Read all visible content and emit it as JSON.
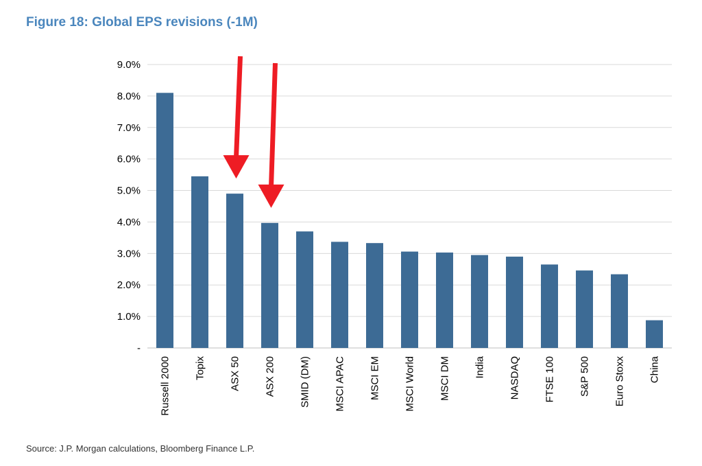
{
  "title": "Figure 18: Global EPS revisions (-1M)",
  "source": "Source: J.P. Morgan calculations, Bloomberg Finance L.P.",
  "colors": {
    "bar": "#3d6b95",
    "grid": "#d9d9d9",
    "title": "#4a86bd",
    "arrow": "#ee1c24"
  },
  "chart_data": {
    "type": "bar",
    "title": "Figure 18: Global EPS revisions (-1M)",
    "xlabel": "",
    "ylabel": "",
    "ylim": [
      0,
      9
    ],
    "yticks": [
      0,
      1,
      2,
      3,
      4,
      5,
      6,
      7,
      8,
      9
    ],
    "ytick_labels": [
      "-",
      "1.0%",
      "2.0%",
      "3.0%",
      "4.0%",
      "5.0%",
      "6.0%",
      "7.0%",
      "8.0%",
      "9.0%"
    ],
    "grid": true,
    "categories": [
      "Russell 2000",
      "Topix",
      "ASX 50",
      "ASX 200",
      "SMID (DM)",
      "MSCI APAC",
      "MSCI EM",
      "MSCI World",
      "MSCI DM",
      "India",
      "NASDAQ",
      "FTSE 100",
      "S&P 500",
      "Euro Stoxx",
      "China"
    ],
    "values": [
      8.1,
      5.45,
      4.9,
      3.97,
      3.7,
      3.37,
      3.33,
      3.06,
      3.03,
      2.95,
      2.9,
      2.65,
      2.46,
      2.34,
      0.88
    ],
    "annotations": [
      {
        "type": "arrow",
        "target": "ASX 50"
      },
      {
        "type": "arrow",
        "target": "ASX 200"
      }
    ]
  }
}
